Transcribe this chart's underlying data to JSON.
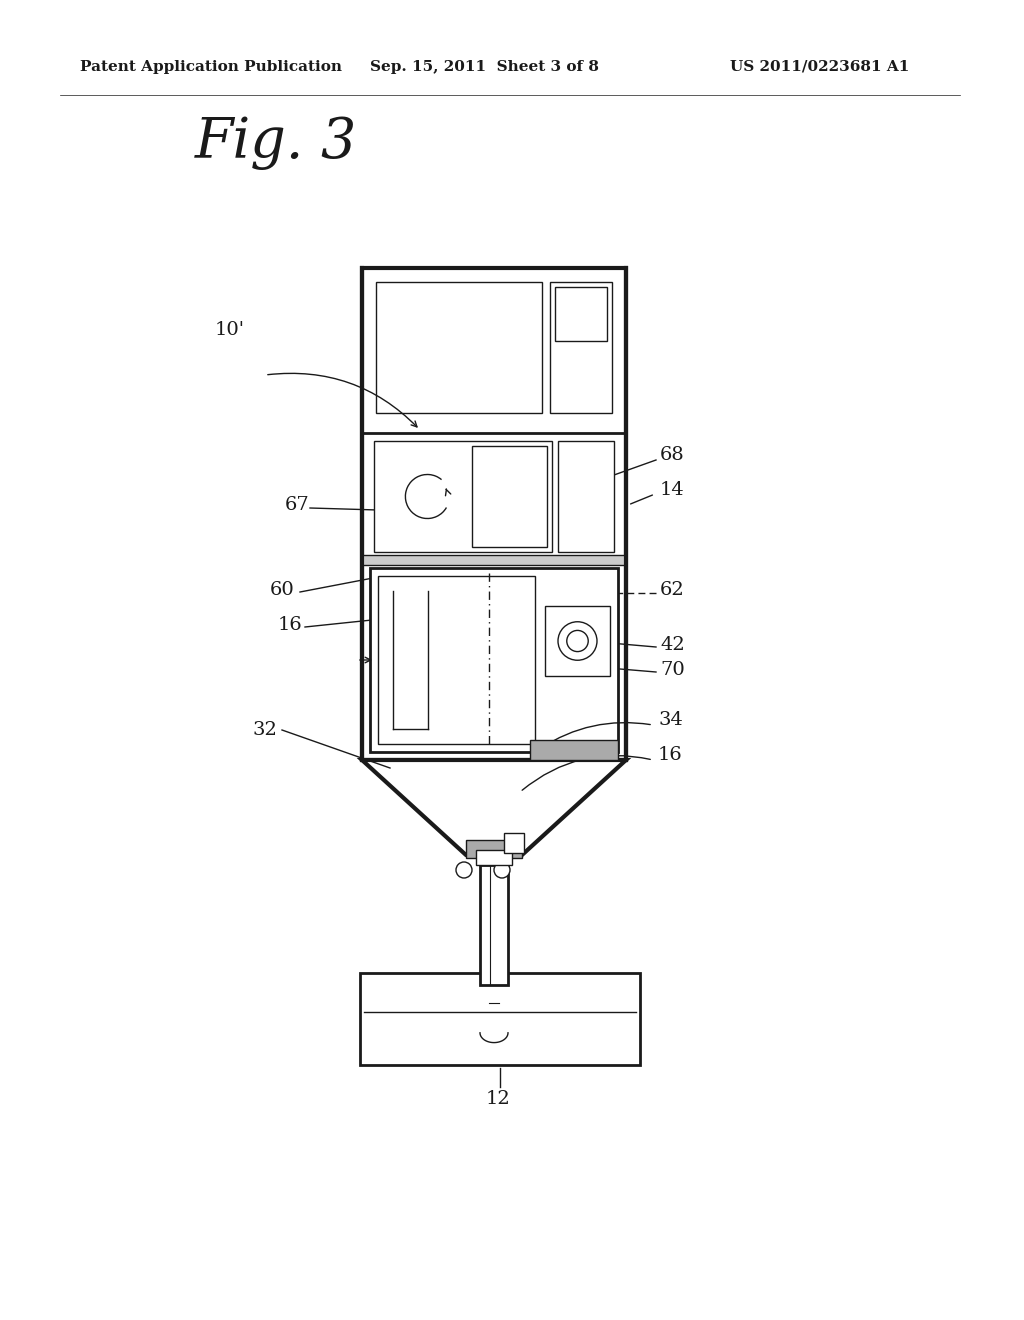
{
  "title_line1": "Patent Application Publication",
  "title_line2": "Sep. 15, 2011  Sheet 3 of 8",
  "title_line3": "US 2011/0223681 A1",
  "fig_label": "Fig. 3",
  "background_color": "#ffffff",
  "line_color": "#1a1a1a",
  "header_fontsize": 11,
  "fig_fontsize": 40,
  "label_fontsize": 14
}
